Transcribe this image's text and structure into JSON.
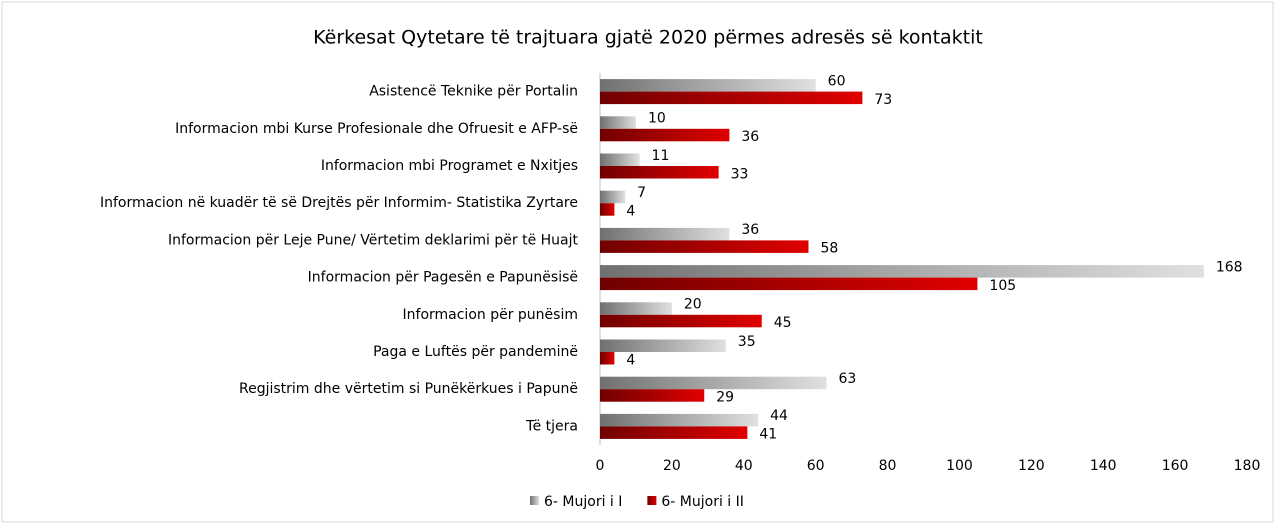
{
  "chart_data": {
    "type": "hbar",
    "title": "Kërkesat Qytetare të trajtuara gjatë 2020 përmes adresës së kontaktit",
    "categories": [
      "Asistencë Teknike për Portalin",
      "Informacion mbi Kurse Profesionale dhe Ofruesit e AFP-së",
      "Informacion mbi Programet e Nxitjes",
      "Informacion në kuadër të së Drejtës për Informim- Statistika Zyrtare",
      "Informacion për Leje Pune/ Vërtetim deklarimi për të Huajt",
      "Informacion për Pagesën e Papunësisë",
      "Informacion për punësim",
      "Paga e Luftës për pandeminë",
      "Regjistrim dhe vërtetim si Punëkërkues i Papunë",
      "Të tjera"
    ],
    "series": [
      {
        "name": "6- Mujori i I",
        "color": "#e0e0e0",
        "values": [
          60,
          10,
          11,
          7,
          36,
          168,
          20,
          35,
          63,
          44
        ]
      },
      {
        "name": "6- Mujori i II",
        "color": "#e00000",
        "values": [
          73,
          36,
          33,
          4,
          58,
          105,
          45,
          4,
          29,
          41
        ]
      }
    ],
    "xlim": [
      0,
      180
    ],
    "xticks": [
      0,
      20,
      40,
      60,
      80,
      100,
      120,
      140,
      160,
      180
    ],
    "legend": "bottom"
  }
}
